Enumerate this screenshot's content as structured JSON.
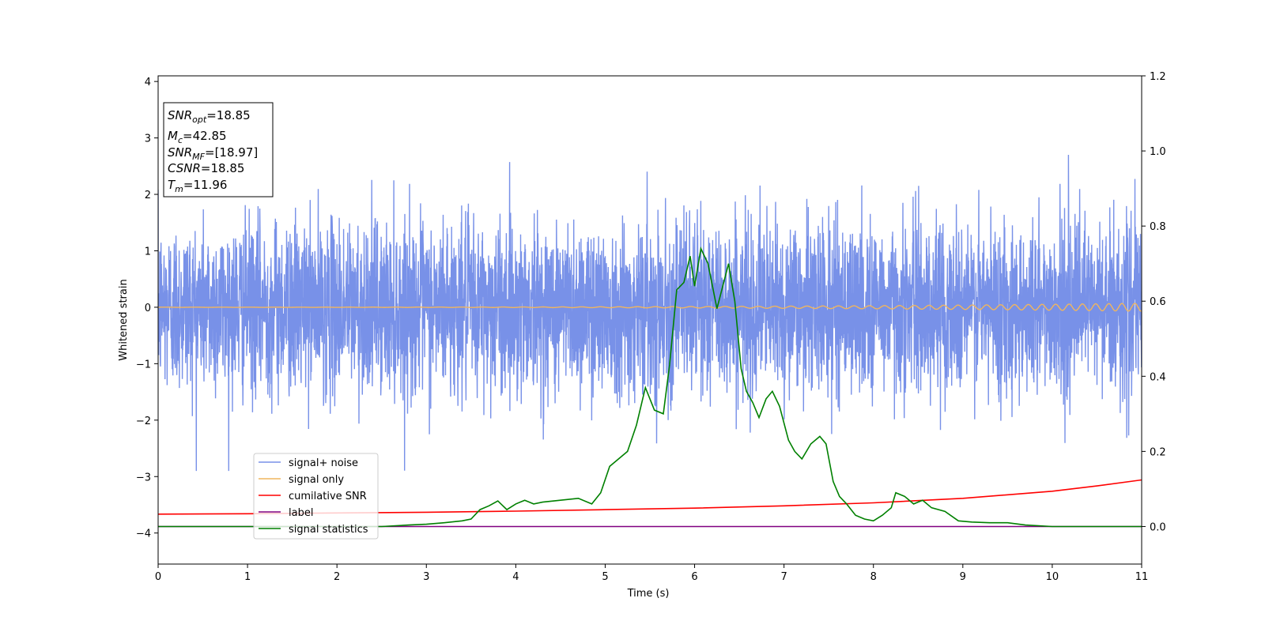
{
  "chart_data": {
    "type": "line",
    "xlabel": "Time (s)",
    "ylabel": "Whitened strain",
    "xlim": [
      0,
      11
    ],
    "ylim_left": [
      -4.55,
      4.1
    ],
    "ylim_right": [
      -0.1,
      1.2
    ],
    "x_ticks": [
      "0",
      "1",
      "2",
      "3",
      "4",
      "5",
      "6",
      "7",
      "8",
      "9",
      "10",
      "11"
    ],
    "y_left_ticks": [
      "−4",
      "−3",
      "−2",
      "−1",
      "0",
      "1",
      "2",
      "3",
      "4"
    ],
    "y_right_ticks": [
      "0.0",
      "0.2",
      "0.4",
      "0.6",
      "0.8",
      "1.0",
      "1.2"
    ],
    "info_box": {
      "snr_opt": "=18.85",
      "mc": "=42.85",
      "snr_mf": "=[18.97]",
      "csnr": "=18.85",
      "tm": "=11.96"
    },
    "legend": [
      "signal+ noise",
      "signal only",
      "cumilative SNR",
      "label",
      "signal statistics"
    ],
    "colors": {
      "signal_noise": "#7891e8",
      "signal_only": "#f0b55e",
      "cumulative_snr": "#ff0000",
      "label": "#800080",
      "signal_statistics": "#008000"
    },
    "series": [
      {
        "name": "signal+ noise",
        "axis": "left",
        "description": "white noise, std ~0.75, range about -2.9 to 2.7, x 0 to 11"
      },
      {
        "name": "signal only",
        "axis": "left",
        "amplitude_start": 0.002,
        "amplitude_end": 0.07
      },
      {
        "name": "cumilative SNR",
        "axis": "right",
        "x": [
          0,
          1,
          2,
          3,
          4,
          5,
          6,
          7,
          8,
          9,
          10,
          10.5,
          11
        ],
        "y": [
          0.033,
          0.034,
          0.036,
          0.038,
          0.041,
          0.045,
          0.049,
          0.055,
          0.063,
          0.075,
          0.094,
          0.108,
          0.124
        ]
      },
      {
        "name": "label",
        "axis": "right",
        "x": [
          0,
          11
        ],
        "y": [
          0.0,
          0.0
        ]
      },
      {
        "name": "signal statistics",
        "axis": "right",
        "x": [
          0,
          2.5,
          2.8,
          3.0,
          3.2,
          3.4,
          3.5,
          3.6,
          3.7,
          3.8,
          3.9,
          4.0,
          4.1,
          4.2,
          4.3,
          4.5,
          4.7,
          4.85,
          4.95,
          5.05,
          5.15,
          5.25,
          5.35,
          5.45,
          5.55,
          5.65,
          5.72,
          5.8,
          5.88,
          5.95,
          6.0,
          6.07,
          6.15,
          6.25,
          6.38,
          6.45,
          6.52,
          6.58,
          6.65,
          6.72,
          6.8,
          6.87,
          6.95,
          7.05,
          7.12,
          7.2,
          7.3,
          7.4,
          7.47,
          7.55,
          7.62,
          7.7,
          7.8,
          7.9,
          8.0,
          8.1,
          8.2,
          8.25,
          8.35,
          8.45,
          8.55,
          8.65,
          8.8,
          8.95,
          9.1,
          9.3,
          9.5,
          9.7,
          10.0,
          11.0
        ],
        "y": [
          0.0,
          0.0,
          0.004,
          0.006,
          0.01,
          0.015,
          0.02,
          0.045,
          0.055,
          0.068,
          0.045,
          0.06,
          0.07,
          0.06,
          0.065,
          0.07,
          0.075,
          0.06,
          0.09,
          0.16,
          0.18,
          0.2,
          0.27,
          0.37,
          0.31,
          0.3,
          0.43,
          0.63,
          0.65,
          0.72,
          0.64,
          0.74,
          0.7,
          0.58,
          0.7,
          0.6,
          0.42,
          0.36,
          0.33,
          0.29,
          0.34,
          0.36,
          0.32,
          0.23,
          0.2,
          0.18,
          0.22,
          0.24,
          0.22,
          0.12,
          0.08,
          0.06,
          0.03,
          0.02,
          0.015,
          0.03,
          0.05,
          0.09,
          0.08,
          0.06,
          0.07,
          0.05,
          0.04,
          0.015,
          0.012,
          0.01,
          0.01,
          0.004,
          0.0,
          0.0
        ]
      }
    ]
  }
}
